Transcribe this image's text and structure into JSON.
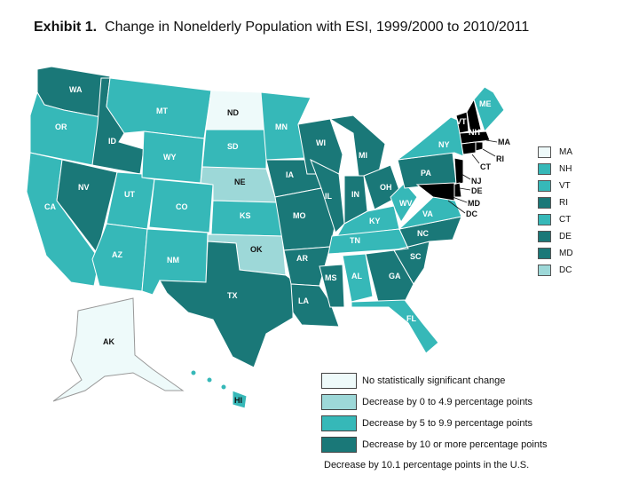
{
  "title": {
    "exhibit": "Exhibit 1.",
    "text": "Change in Nonelderly Population with ESI, 1999/2000 to 2010/2011"
  },
  "colors": {
    "none": "#eefafa",
    "c0_4_9": "#9dd8d8",
    "c5_9_9": "#36b8b8",
    "c10_plus": "#1a7878"
  },
  "states": {
    "WA": "c10_plus",
    "OR": "c5_9_9",
    "CA": "c5_9_9",
    "ID": "c10_plus",
    "NV": "c10_plus",
    "MT": "c5_9_9",
    "WY": "c5_9_9",
    "UT": "c5_9_9",
    "AZ": "c5_9_9",
    "CO": "c5_9_9",
    "NM": "c5_9_9",
    "ND": "none",
    "SD": "c5_9_9",
    "NE": "c0_4_9",
    "KS": "c5_9_9",
    "OK": "c0_4_9",
    "TX": "c10_plus",
    "MN": "c5_9_9",
    "IA": "c10_plus",
    "MO": "c10_plus",
    "AR": "c10_plus",
    "LA": "c10_plus",
    "WI": "c10_plus",
    "IL": "c10_plus",
    "MS": "c10_plus",
    "MI": "c10_plus",
    "IN": "c10_plus",
    "OH": "c10_plus",
    "KY": "c5_9_9",
    "TN": "c5_9_9",
    "AL": "c5_9_9",
    "GA": "c10_plus",
    "FL": "c5_9_9",
    "SC": "c10_plus",
    "NC": "c10_plus",
    "VA": "c5_9_9",
    "WV": "c5_9_9",
    "PA": "c10_plus",
    "NY": "c5_9_9",
    "ME": "c5_9_9",
    "AK": "none",
    "HI": "c5_9_9"
  },
  "map_labels": {
    "WA": "WA",
    "OR": "OR",
    "CA": "CA",
    "ID": "ID",
    "NV": "NV",
    "MT": "MT",
    "WY": "WY",
    "UT": "UT",
    "AZ": "AZ",
    "CO": "CO",
    "NM": "NM",
    "ND": "ND",
    "SD": "SD",
    "NE": "NE",
    "KS": "KS",
    "OK": "OK",
    "TX": "TX",
    "MN": "MN",
    "IA": "IA",
    "MO": "MO",
    "AR": "AR",
    "LA": "LA",
    "WI": "WI",
    "IL": "IL",
    "MS": "MS",
    "MI": "MI",
    "IN": "IN",
    "OH": "OH",
    "KY": "KY",
    "TN": "TN",
    "AL": "AL",
    "GA": "GA",
    "FL": "FL",
    "SC": "SC",
    "NC": "NC",
    "VA": "VA",
    "WV": "WV",
    "PA": "PA",
    "NY": "NY",
    "ME": "ME",
    "VT": "VT",
    "NH": "NH",
    "MA": "MA",
    "RI": "RI",
    "CT": "CT",
    "NJ": "NJ",
    "DE": "DE",
    "MD": "MD",
    "DC": "DC",
    "AK": "AK",
    "HI": "HI"
  },
  "northeast_legend": [
    {
      "label": "MA",
      "color": "#eefafa"
    },
    {
      "label": "NH",
      "color": "#36b8b8"
    },
    {
      "label": "VT",
      "color": "#36b8b8"
    },
    {
      "label": "RI",
      "color": "#1a7878"
    },
    {
      "label": "CT",
      "color": "#36b8b8"
    },
    {
      "label": "DE",
      "color": "#1a7878"
    },
    {
      "label": "MD",
      "color": "#1a7878"
    },
    {
      "label": "DC",
      "color": "#9dd8d8"
    }
  ],
  "legend": [
    {
      "label": "No statistically significant change",
      "color": "#eefafa"
    },
    {
      "label": "Decrease by 0 to 4.9 percentage points",
      "color": "#9dd8d8"
    },
    {
      "label": "Decrease by 5 to 9.9 percentage points",
      "color": "#36b8b8"
    },
    {
      "label": "Decrease by 10 or more percentage points",
      "color": "#1a7878"
    }
  ],
  "footnote": "Decrease by 10.1 percentage points in the U.S."
}
